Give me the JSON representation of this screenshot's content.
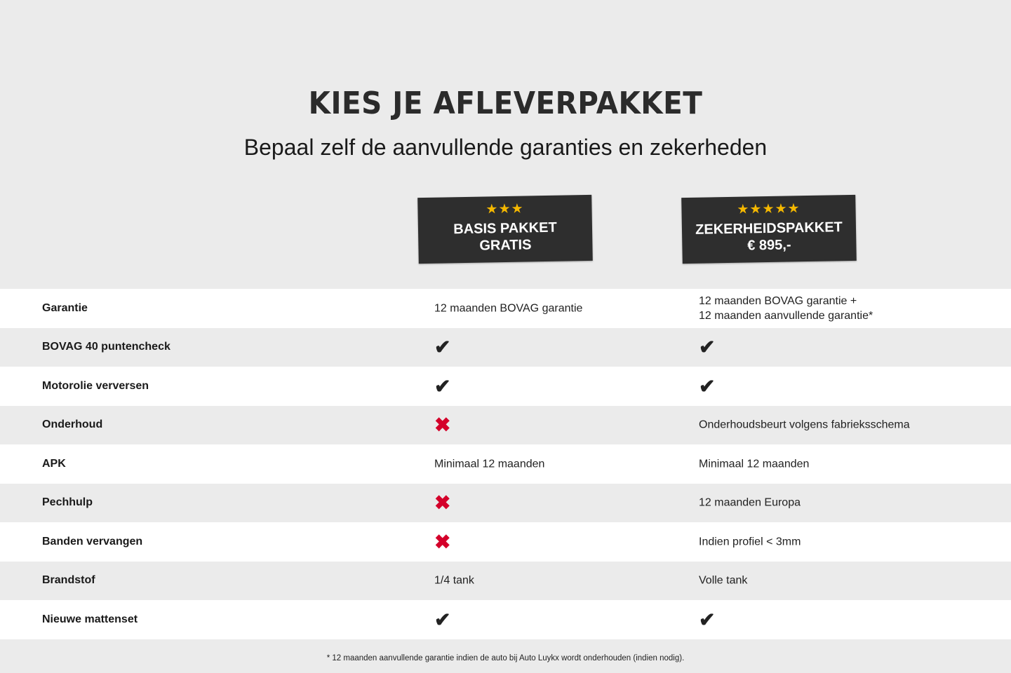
{
  "header": {
    "title": "KIES JE AFLEVERPAKKET",
    "subtitle": "Bepaal zelf de aanvullende garanties en zekerheden"
  },
  "packages": [
    {
      "stars": "★★★",
      "star_count": 3,
      "name": "BASIS PAKKET",
      "price": "GRATIS"
    },
    {
      "stars": "★★★★★",
      "star_count": 5,
      "name": "ZEKERHEIDSPAKKET",
      "price": "€ 895,-"
    }
  ],
  "icons": {
    "check": "✔",
    "cross": "✖"
  },
  "colors": {
    "badge": "#2e2e2e",
    "star": "#f5b800",
    "cross": "#d4002a",
    "check": "#222222"
  },
  "rows": [
    {
      "label": "Garantie",
      "basis": "12 maanden BOVAG garantie",
      "zeker": "12 maanden BOVAG garantie +\n12 maanden aanvullende garantie*"
    },
    {
      "label": "BOVAG 40 puntencheck",
      "basis": "check",
      "zeker": "check"
    },
    {
      "label": "Motorolie verversen",
      "basis": "check",
      "zeker": "check"
    },
    {
      "label": "Onderhoud",
      "basis": "cross",
      "zeker": "Onderhoudsbeurt volgens fabrieksschema"
    },
    {
      "label": "APK",
      "basis": "Minimaal 12 maanden",
      "zeker": "Minimaal 12 maanden"
    },
    {
      "label": "Pechhulp",
      "basis": "cross",
      "zeker": "12 maanden Europa"
    },
    {
      "label": "Banden vervangen",
      "basis": "cross",
      "zeker": "Indien profiel < 3mm"
    },
    {
      "label": "Brandstof",
      "basis": "1/4 tank",
      "zeker": "Volle tank"
    },
    {
      "label": "Nieuwe mattenset",
      "basis": "check",
      "zeker": "check"
    }
  ],
  "footnote": "* 12 maanden aanvullende garantie indien de auto bij Auto Luykx wordt onderhouden (indien nodig)."
}
